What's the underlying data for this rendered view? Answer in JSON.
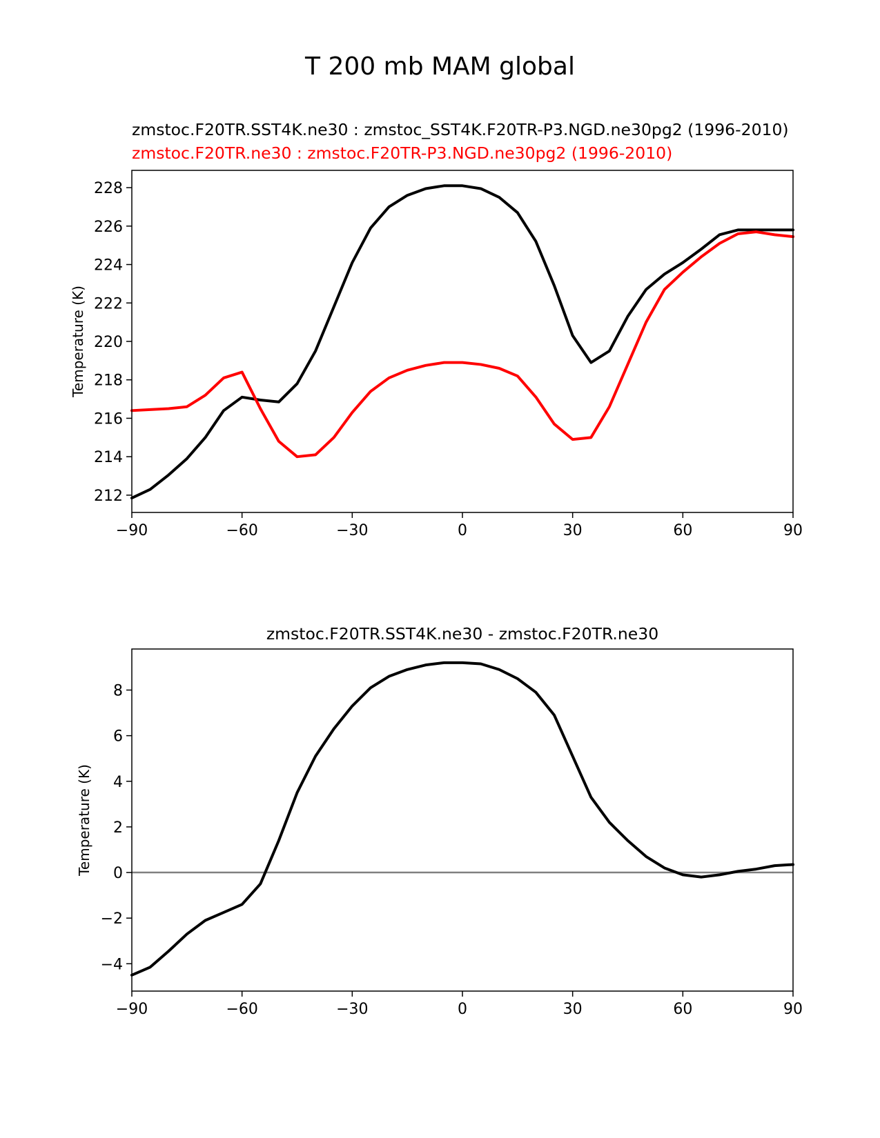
{
  "figure_title": "T 200 mb MAM global",
  "colors": {
    "test": "#000000",
    "control": "#ff0000",
    "zero_line": "#808080",
    "axes": "#000000"
  },
  "chart_data": [
    {
      "type": "line",
      "title_lines": [
        "zmstoc.F20TR.SST4K.ne30 : zmstoc_SST4K.F20TR-P3.NGD.ne30pg2 (1996-2010)",
        "zmstoc.F20TR.ne30 : zmstoc.F20TR-P3.NGD.ne30pg2 (1996-2010)"
      ],
      "xlabel": "",
      "ylabel": "Temperature (K)",
      "xlim": [
        -90,
        90
      ],
      "ylim": [
        211.1,
        228.9
      ],
      "xticks": [
        -90,
        -60,
        -30,
        0,
        30,
        60,
        90
      ],
      "xtick_labels": [
        "−90",
        "−60",
        "−30",
        "0",
        "30",
        "60",
        "90"
      ],
      "yticks": [
        212,
        214,
        216,
        218,
        220,
        222,
        224,
        226,
        228
      ],
      "ytick_labels": [
        "212",
        "214",
        "216",
        "218",
        "220",
        "222",
        "224",
        "226",
        "228"
      ],
      "x": [
        -90,
        -85,
        -80,
        -75,
        -70,
        -65,
        -60,
        -55,
        -50,
        -45,
        -40,
        -35,
        -30,
        -25,
        -20,
        -15,
        -10,
        -5,
        0,
        5,
        10,
        15,
        20,
        25,
        30,
        35,
        40,
        45,
        50,
        55,
        60,
        65,
        70,
        75,
        80,
        85,
        90
      ],
      "series": [
        {
          "name": "zmstoc.F20TR.SST4K.ne30",
          "color": "#000000",
          "values": [
            211.85,
            212.3,
            213.05,
            213.9,
            215.0,
            216.4,
            217.1,
            216.95,
            216.85,
            217.8,
            219.5,
            221.8,
            224.1,
            225.9,
            227.0,
            227.6,
            227.95,
            228.1,
            228.1,
            227.95,
            227.5,
            226.7,
            225.2,
            222.9,
            220.3,
            218.9,
            219.5,
            221.3,
            222.7,
            223.5,
            224.1,
            224.8,
            225.55,
            225.8,
            225.8,
            225.8,
            225.8
          ]
        },
        {
          "name": "zmstoc.F20TR.ne30",
          "color": "#ff0000",
          "values": [
            216.4,
            216.45,
            216.5,
            216.6,
            217.2,
            218.1,
            218.4,
            216.5,
            214.8,
            214.0,
            214.1,
            215.0,
            216.3,
            217.4,
            218.1,
            218.5,
            218.75,
            218.9,
            218.9,
            218.8,
            218.6,
            218.2,
            217.1,
            215.7,
            214.9,
            215.0,
            216.6,
            218.8,
            221.0,
            222.7,
            223.6,
            224.4,
            225.1,
            225.6,
            225.7,
            225.55,
            225.45
          ]
        }
      ]
    },
    {
      "type": "line",
      "title": "zmstoc.F20TR.SST4K.ne30 - zmstoc.F20TR.ne30",
      "xlabel": "",
      "ylabel": "Temperature (K)",
      "xlim": [
        -90,
        90
      ],
      "ylim": [
        -5.2,
        9.8
      ],
      "xticks": [
        -90,
        -60,
        -30,
        0,
        30,
        60,
        90
      ],
      "xtick_labels": [
        "−90",
        "−60",
        "−30",
        "0",
        "30",
        "60",
        "90"
      ],
      "yticks": [
        -4,
        -2,
        0,
        2,
        4,
        6,
        8
      ],
      "ytick_labels": [
        "−4",
        "−2",
        "0",
        "2",
        "4",
        "6",
        "8"
      ],
      "zero_line": 0,
      "x": [
        -90,
        -85,
        -80,
        -75,
        -70,
        -65,
        -60,
        -55,
        -50,
        -45,
        -40,
        -35,
        -30,
        -25,
        -20,
        -15,
        -10,
        -5,
        0,
        5,
        10,
        15,
        20,
        25,
        30,
        35,
        40,
        45,
        50,
        55,
        60,
        65,
        70,
        75,
        80,
        85,
        90
      ],
      "series": [
        {
          "name": "zmstoc.F20TR.SST4K.ne30 - zmstoc.F20TR.ne30",
          "color": "#000000",
          "values": [
            -4.5,
            -4.15,
            -3.45,
            -2.7,
            -2.1,
            -1.75,
            -1.4,
            -0.5,
            1.4,
            3.5,
            5.1,
            6.3,
            7.3,
            8.1,
            8.6,
            8.9,
            9.1,
            9.2,
            9.2,
            9.15,
            8.9,
            8.5,
            7.9,
            6.9,
            5.1,
            3.3,
            2.2,
            1.4,
            0.7,
            0.2,
            -0.1,
            -0.2,
            -0.1,
            0.05,
            0.15,
            0.3,
            0.35
          ]
        }
      ]
    }
  ]
}
